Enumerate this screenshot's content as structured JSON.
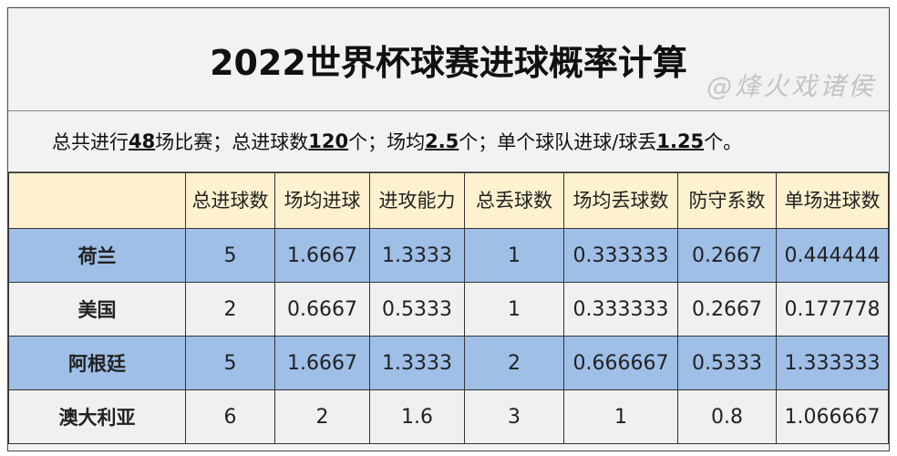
{
  "title": "2022世界杯球赛进球概率计算",
  "summary": {
    "p1": "总共进行",
    "v1": "48",
    "p2": "场比赛；总进球数",
    "v2": "120",
    "p3": "个；场均",
    "v3": "2.5",
    "p4": "个；单个球队进球/球丢",
    "v4": "1.25",
    "p5": "个。"
  },
  "headers": [
    "",
    "总进球数",
    "场均进球",
    "进攻能力",
    "总丢球数",
    "场均丢球数",
    "防守系数",
    "单场进球数"
  ],
  "rows": [
    [
      "荷兰",
      "5",
      "1.6667",
      "1.3333",
      "1",
      "0.333333",
      "0.2667",
      "0.444444"
    ],
    [
      "美国",
      "2",
      "0.6667",
      "0.5333",
      "1",
      "0.333333",
      "0.2667",
      "0.177778"
    ],
    [
      "阿根廷",
      "5",
      "1.6667",
      "1.3333",
      "2",
      "0.666667",
      "0.5333",
      "1.333333"
    ],
    [
      "澳大利亚",
      "6",
      "2",
      "1.6",
      "3",
      "1",
      "0.8",
      "1.066667"
    ]
  ],
  "watermark": "@烽火戏诸侯"
}
